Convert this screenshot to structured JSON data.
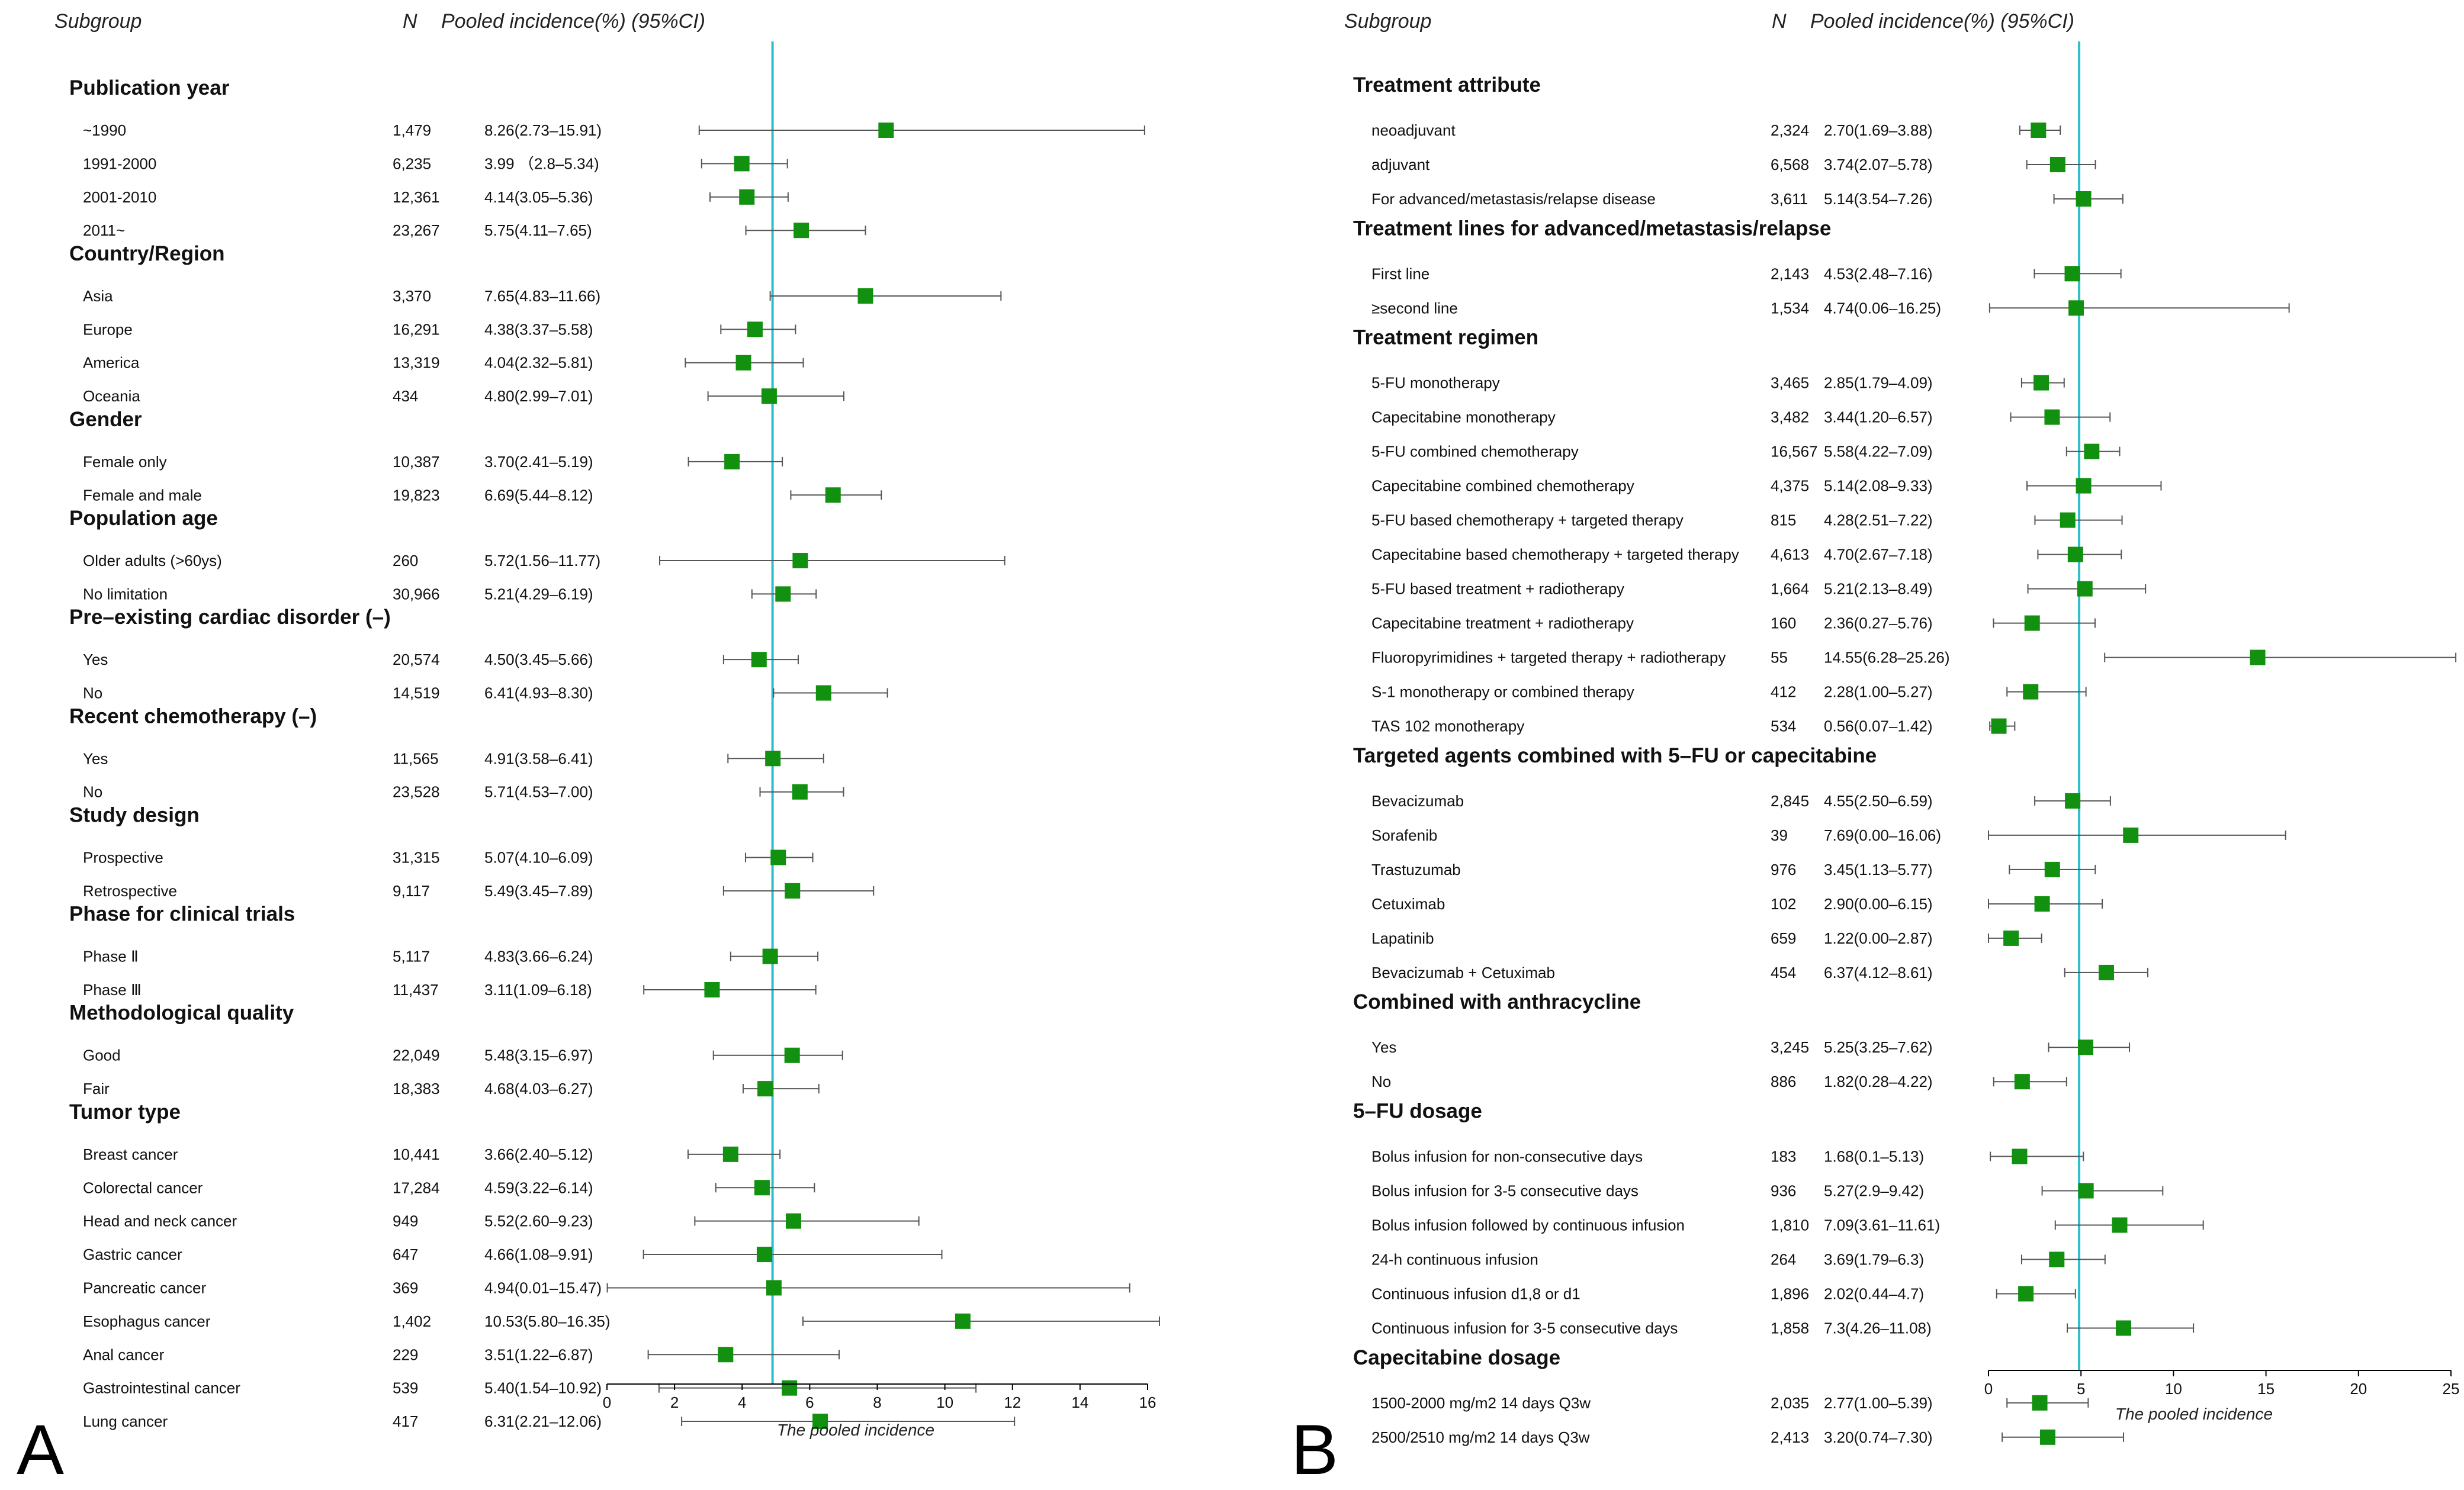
{
  "chart_data": [
    {
      "type": "forest",
      "panel_label": "A",
      "headers": {
        "subgroup": "Subgroup",
        "n": "N",
        "estimate": "Pooled incidence(%) (95%CI)"
      },
      "xlabel": "The pooled incidence",
      "xlim": [
        0,
        16
      ],
      "xticks": [
        0,
        2,
        4,
        6,
        8,
        10,
        12,
        14,
        16
      ],
      "reference_line": 4.9,
      "marker_color": "#12900f",
      "reference_color": "#2bbfcc",
      "groups": [
        {
          "title": "Publication year",
          "rows": [
            {
              "label": "~1990",
              "n": "1,479",
              "ci_text": "8.26(2.73–15.91)",
              "est": 8.26,
              "lo": 2.73,
              "hi": 15.91
            },
            {
              "label": "1991-2000",
              "n": "6,235",
              "ci_text": "3.99 （2.8–5.34)",
              "est": 3.99,
              "lo": 2.8,
              "hi": 5.34
            },
            {
              "label": "2001-2010",
              "n": "12,361",
              "ci_text": "4.14(3.05–5.36)",
              "est": 4.14,
              "lo": 3.05,
              "hi": 5.36
            },
            {
              "label": "2011~",
              "n": "23,267",
              "ci_text": "5.75(4.11–7.65)",
              "est": 5.75,
              "lo": 4.11,
              "hi": 7.65
            }
          ]
        },
        {
          "title": "Country/Region",
          "rows": [
            {
              "label": "Asia",
              "n": "3,370",
              "ci_text": "7.65(4.83–11.66)",
              "est": 7.65,
              "lo": 4.83,
              "hi": 11.66
            },
            {
              "label": "Europe",
              "n": "16,291",
              "ci_text": "4.38(3.37–5.58)",
              "est": 4.38,
              "lo": 3.37,
              "hi": 5.58
            },
            {
              "label": "America",
              "n": "13,319",
              "ci_text": "4.04(2.32–5.81)",
              "est": 4.04,
              "lo": 2.32,
              "hi": 5.81
            },
            {
              "label": "Oceania",
              "n": "434",
              "ci_text": "4.80(2.99–7.01)",
              "est": 4.8,
              "lo": 2.99,
              "hi": 7.01
            }
          ]
        },
        {
          "title": "Gender",
          "rows": [
            {
              "label": "Female only",
              "n": "10,387",
              "ci_text": "3.70(2.41–5.19)",
              "est": 3.7,
              "lo": 2.41,
              "hi": 5.19
            },
            {
              "label": "Female and male",
              "n": "19,823",
              "ci_text": "6.69(5.44–8.12)",
              "est": 6.69,
              "lo": 5.44,
              "hi": 8.12
            }
          ]
        },
        {
          "title": "Population age",
          "rows": [
            {
              "label": "Older adults (>60ys)",
              "n": "260",
              "ci_text": "5.72(1.56–11.77)",
              "est": 5.72,
              "lo": 1.56,
              "hi": 11.77
            },
            {
              "label": "No limitation",
              "n": "30,966",
              "ci_text": "5.21(4.29–6.19)",
              "est": 5.21,
              "lo": 4.29,
              "hi": 6.19
            }
          ]
        },
        {
          "title": "Pre–existing cardiac disorder (–)",
          "rows": [
            {
              "label": "Yes",
              "n": "20,574",
              "ci_text": "4.50(3.45–5.66)",
              "est": 4.5,
              "lo": 3.45,
              "hi": 5.66
            },
            {
              "label": "No",
              "n": "14,519",
              "ci_text": "6.41(4.93–8.30)",
              "est": 6.41,
              "lo": 4.93,
              "hi": 8.3
            }
          ]
        },
        {
          "title": "Recent chemotherapy (–)",
          "rows": [
            {
              "label": "Yes",
              "n": "11,565",
              "ci_text": "4.91(3.58–6.41)",
              "est": 4.91,
              "lo": 3.58,
              "hi": 6.41
            },
            {
              "label": "No",
              "n": "23,528",
              "ci_text": "5.71(4.53–7.00)",
              "est": 5.71,
              "lo": 4.53,
              "hi": 7.0
            }
          ]
        },
        {
          "title": "Study design",
          "rows": [
            {
              "label": "Prospective",
              "n": "31,315",
              "ci_text": "5.07(4.10–6.09)",
              "est": 5.07,
              "lo": 4.1,
              "hi": 6.09
            },
            {
              "label": "Retrospective",
              "n": "9,117",
              "ci_text": "5.49(3.45–7.89)",
              "est": 5.49,
              "lo": 3.45,
              "hi": 7.89
            }
          ]
        },
        {
          "title": "Phase for clinical trials",
          "rows": [
            {
              "label": "Phase Ⅱ",
              "n": "5,117",
              "ci_text": "4.83(3.66–6.24)",
              "est": 4.83,
              "lo": 3.66,
              "hi": 6.24
            },
            {
              "label": "Phase Ⅲ",
              "n": "11,437",
              "ci_text": "3.11(1.09–6.18)",
              "est": 3.11,
              "lo": 1.09,
              "hi": 6.18
            }
          ]
        },
        {
          "title": "Methodological quality",
          "rows": [
            {
              "label": "Good",
              "n": "22,049",
              "ci_text": "5.48(3.15–6.97)",
              "est": 5.48,
              "lo": 3.15,
              "hi": 6.97
            },
            {
              "label": "Fair",
              "n": "18,383",
              "ci_text": "4.68(4.03–6.27)",
              "est": 4.68,
              "lo": 4.03,
              "hi": 6.27
            }
          ]
        },
        {
          "title": "Tumor type",
          "rows": [
            {
              "label": "Breast cancer",
              "n": "10,441",
              "ci_text": "3.66(2.40–5.12)",
              "est": 3.66,
              "lo": 2.4,
              "hi": 5.12
            },
            {
              "label": "Colorectal cancer",
              "n": "17,284",
              "ci_text": "4.59(3.22–6.14)",
              "est": 4.59,
              "lo": 3.22,
              "hi": 6.14
            },
            {
              "label": "Head and neck cancer",
              "n": "949",
              "ci_text": "5.52(2.60–9.23)",
              "est": 5.52,
              "lo": 2.6,
              "hi": 9.23
            },
            {
              "label": "Gastric cancer",
              "n": "647",
              "ci_text": "4.66(1.08–9.91)",
              "est": 4.66,
              "lo": 1.08,
              "hi": 9.91
            },
            {
              "label": "Pancreatic cancer",
              "n": "369",
              "ci_text": "4.94(0.01–15.47)",
              "est": 4.94,
              "lo": 0.01,
              "hi": 15.47
            },
            {
              "label": "Esophagus cancer",
              "n": "1,402",
              "ci_text": "10.53(5.80–16.35)",
              "est": 10.53,
              "lo": 5.8,
              "hi": 16.35
            },
            {
              "label": "Anal cancer",
              "n": "229",
              "ci_text": "3.51(1.22–6.87)",
              "est": 3.51,
              "lo": 1.22,
              "hi": 6.87
            },
            {
              "label": "Gastrointestinal cancer",
              "n": "539",
              "ci_text": "5.40(1.54–10.92)",
              "est": 5.4,
              "lo": 1.54,
              "hi": 10.92
            },
            {
              "label": "Lung cancer",
              "n": "417",
              "ci_text": "6.31(2.21–12.06)",
              "est": 6.31,
              "lo": 2.21,
              "hi": 12.06
            }
          ]
        }
      ]
    },
    {
      "type": "forest",
      "panel_label": "B",
      "headers": {
        "subgroup": "Subgroup",
        "n": "N",
        "estimate": "Pooled incidence(%) (95%CI)"
      },
      "xlabel": "The pooled incidence",
      "xlim": [
        0,
        25
      ],
      "xticks": [
        0,
        5,
        10,
        15,
        20,
        25
      ],
      "reference_line": 4.9,
      "marker_color": "#12900f",
      "reference_color": "#2bbfcc",
      "groups": [
        {
          "title": "Treatment attribute",
          "rows": [
            {
              "label": "neoadjuvant",
              "n": "2,324",
              "ci_text": "2.70(1.69–3.88)",
              "est": 2.7,
              "lo": 1.69,
              "hi": 3.88
            },
            {
              "label": "adjuvant",
              "n": "6,568",
              "ci_text": "3.74(2.07–5.78)",
              "est": 3.74,
              "lo": 2.07,
              "hi": 5.78
            },
            {
              "label": "For advanced/metastasis/relapse disease",
              "n": "3,611",
              "ci_text": "5.14(3.54–7.26)",
              "est": 5.14,
              "lo": 3.54,
              "hi": 7.26
            }
          ]
        },
        {
          "title": "Treatment lines for advanced/metastasis/relapse",
          "rows": [
            {
              "label": "First line",
              "n": "2,143",
              "ci_text": "4.53(2.48–7.16)",
              "est": 4.53,
              "lo": 2.48,
              "hi": 7.16
            },
            {
              "label": "≥second line",
              "n": "1,534",
              "ci_text": "4.74(0.06–16.25)",
              "est": 4.74,
              "lo": 0.06,
              "hi": 16.25
            }
          ]
        },
        {
          "title": "Treatment regimen",
          "rows": [
            {
              "label": "5-FU monotherapy",
              "n": "3,465",
              "ci_text": "2.85(1.79–4.09)",
              "est": 2.85,
              "lo": 1.79,
              "hi": 4.09
            },
            {
              "label": "Capecitabine  monotherapy",
              "n": "3,482",
              "ci_text": "3.44(1.20–6.57)",
              "est": 3.44,
              "lo": 1.2,
              "hi": 6.57
            },
            {
              "label": "5-FU combined chemotherapy",
              "n": "16,567",
              "ci_text": "5.58(4.22–7.09)",
              "est": 5.58,
              "lo": 4.22,
              "hi": 7.09
            },
            {
              "label": "Capecitabine  combined chemotherapy",
              "n": "4,375",
              "ci_text": "5.14(2.08–9.33)",
              "est": 5.14,
              "lo": 2.08,
              "hi": 9.33
            },
            {
              "label": "5-FU based chemotherapy + targeted therapy",
              "n": "815",
              "ci_text": "4.28(2.51–7.22)",
              "est": 4.28,
              "lo": 2.51,
              "hi": 7.22
            },
            {
              "label": "Capecitabine based chemotherapy + targeted therapy",
              "n": "4,613",
              "ci_text": "4.70(2.67–7.18)",
              "est": 4.7,
              "lo": 2.67,
              "hi": 7.18
            },
            {
              "label": "5-FU based treatment + radiotherapy",
              "n": "1,664",
              "ci_text": "5.21(2.13–8.49)",
              "est": 5.21,
              "lo": 2.13,
              "hi": 8.49
            },
            {
              "label": "Capecitabine treatment + radiotherapy",
              "n": "160",
              "ci_text": "2.36(0.27–5.76)",
              "est": 2.36,
              "lo": 0.27,
              "hi": 5.76
            },
            {
              "label": "Fluoropyrimidines + targeted therapy + radiotherapy",
              "n": "55",
              "ci_text": "14.55(6.28–25.26)",
              "est": 14.55,
              "lo": 6.28,
              "hi": 25.26
            },
            {
              "label": "S-1 monotherapy or combined therapy",
              "n": "412",
              "ci_text": "2.28(1.00–5.27)",
              "est": 2.28,
              "lo": 1.0,
              "hi": 5.27
            },
            {
              "label": "TAS 102 monotherapy",
              "n": "534",
              "ci_text": "0.56(0.07–1.42)",
              "est": 0.56,
              "lo": 0.07,
              "hi": 1.42
            }
          ]
        },
        {
          "title": "Targeted agents combined with 5–FU or capecitabine",
          "rows": [
            {
              "label": "Bevacizumab",
              "n": "2,845",
              "ci_text": "4.55(2.50–6.59)",
              "est": 4.55,
              "lo": 2.5,
              "hi": 6.59
            },
            {
              "label": "Sorafenib",
              "n": "39",
              "ci_text": "7.69(0.00–16.06)",
              "est": 7.69,
              "lo": 0.0,
              "hi": 16.06
            },
            {
              "label": "Trastuzumab",
              "n": "976",
              "ci_text": "3.45(1.13–5.77)",
              "est": 3.45,
              "lo": 1.13,
              "hi": 5.77
            },
            {
              "label": "Cetuximab",
              "n": "102",
              "ci_text": "2.90(0.00–6.15)",
              "est": 2.9,
              "lo": 0.0,
              "hi": 6.15
            },
            {
              "label": "Lapatinib",
              "n": "659",
              "ci_text": "1.22(0.00–2.87)",
              "est": 1.22,
              "lo": 0.0,
              "hi": 2.87
            },
            {
              "label": "Bevacizumab + Cetuximab",
              "n": "454",
              "ci_text": "6.37(4.12–8.61)",
              "est": 6.37,
              "lo": 4.12,
              "hi": 8.61
            }
          ]
        },
        {
          "title": "Combined with anthracycline",
          "rows": [
            {
              "label": "Yes",
              "n": "3,245",
              "ci_text": "5.25(3.25–7.62)",
              "est": 5.25,
              "lo": 3.25,
              "hi": 7.62
            },
            {
              "label": "No",
              "n": "886",
              "ci_text": "1.82(0.28–4.22)",
              "est": 1.82,
              "lo": 0.28,
              "hi": 4.22
            }
          ]
        },
        {
          "title": "5–FU dosage",
          "rows": [
            {
              "label": "Bolus infusion for non-consecutive days",
              "n": "183",
              "ci_text": "1.68(0.1–5.13)",
              "est": 1.68,
              "lo": 0.1,
              "hi": 5.13
            },
            {
              "label": "Bolus infusion for 3-5 consecutive days",
              "n": "936",
              "ci_text": "5.27(2.9–9.42)",
              "est": 5.27,
              "lo": 2.9,
              "hi": 9.42
            },
            {
              "label": "Bolus infusion followed by continuous infusion",
              "n": "1,810",
              "ci_text": "7.09(3.61–11.61)",
              "est": 7.09,
              "lo": 3.61,
              "hi": 11.61
            },
            {
              "label": "24-h continuous infusion",
              "n": "264",
              "ci_text": "3.69(1.79–6.3)",
              "est": 3.69,
              "lo": 1.79,
              "hi": 6.3
            },
            {
              "label": "Continuous infusion d1,8 or d1",
              "n": "1,896",
              "ci_text": "2.02(0.44–4.7)",
              "est": 2.02,
              "lo": 0.44,
              "hi": 4.7
            },
            {
              "label": "Continuous infusion for 3-5 consecutive days",
              "n": "1,858",
              "ci_text": "7.3(4.26–11.08)",
              "est": 7.3,
              "lo": 4.26,
              "hi": 11.08
            }
          ]
        },
        {
          "title": "Capecitabine dosage",
          "rows": [
            {
              "label": "1500-2000 mg/m2 14 days Q3w",
              "n": "2,035",
              "ci_text": "2.77(1.00–5.39)",
              "est": 2.77,
              "lo": 1.0,
              "hi": 5.39
            },
            {
              "label": "2500/2510 mg/m2 14 days Q3w",
              "n": "2,413",
              "ci_text": "3.20(0.74–7.30)",
              "est": 3.2,
              "lo": 0.74,
              "hi": 7.3
            }
          ]
        }
      ]
    }
  ]
}
